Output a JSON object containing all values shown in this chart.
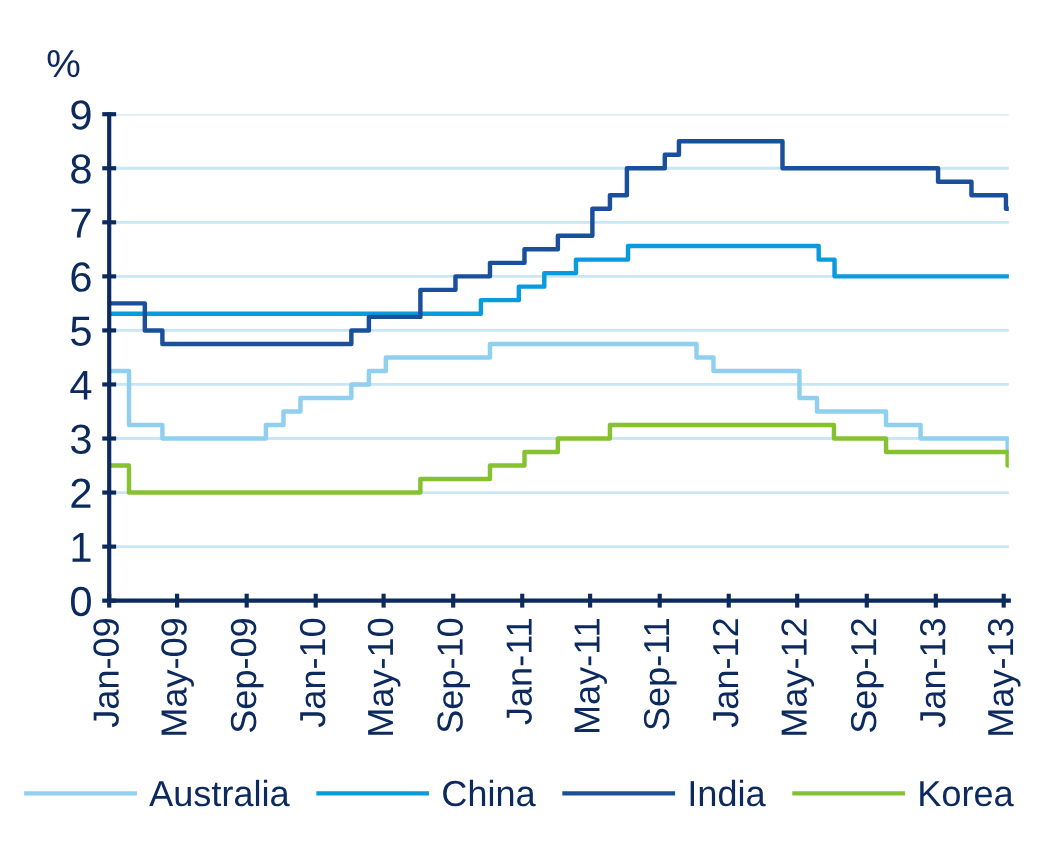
{
  "chart_data": {
    "type": "step",
    "ylabel": "%",
    "xlim": [
      "2009-01-01",
      "2013-05-10"
    ],
    "xticks": [
      {
        "value": "2009-01-01",
        "label": "Jan-09"
      },
      {
        "value": "2009-05-01",
        "label": "May-09"
      },
      {
        "value": "2009-09-01",
        "label": "Sep-09"
      },
      {
        "value": "2010-01-01",
        "label": "Jan-10"
      },
      {
        "value": "2010-05-01",
        "label": "May-10"
      },
      {
        "value": "2010-09-01",
        "label": "Sep-10"
      },
      {
        "value": "2011-01-01",
        "label": "Jan-11"
      },
      {
        "value": "2011-05-01",
        "label": "May-11"
      },
      {
        "value": "2011-09-01",
        "label": "Sep-11"
      },
      {
        "value": "2012-01-01",
        "label": "Jan-12"
      },
      {
        "value": "2012-05-01",
        "label": "May-12"
      },
      {
        "value": "2012-09-01",
        "label": "Sep-12"
      },
      {
        "value": "2013-01-01",
        "label": "Jan-13"
      },
      {
        "value": "2013-05-01",
        "label": "May-13"
      }
    ],
    "ylim": [
      0,
      9
    ],
    "yticks": [
      0,
      1,
      2,
      3,
      4,
      5,
      6,
      7,
      8,
      9
    ],
    "grid": "y",
    "legend": "bottom",
    "line_style": "solid",
    "marker": "none",
    "series": [
      {
        "name": "Australia",
        "color": "#8fd0f0",
        "x": [
          "2009-01-01",
          "2009-02-05",
          "2009-04-05",
          "2009-10-05",
          "2009-11-05",
          "2009-12-05",
          "2010-03-05",
          "2010-04-05",
          "2010-05-05",
          "2010-11-05",
          "2011-11-05",
          "2011-12-05",
          "2012-05-05",
          "2012-06-05",
          "2012-10-05",
          "2012-12-05",
          "2013-05-08",
          "2013-05-10"
        ],
        "values": [
          4.25,
          3.25,
          3.0,
          3.25,
          3.5,
          3.75,
          4.0,
          4.25,
          4.5,
          4.75,
          4.5,
          4.25,
          3.75,
          3.5,
          3.25,
          3.0,
          2.75,
          2.75
        ]
      },
      {
        "name": "China",
        "color": "#0a9ade",
        "x": [
          "2009-01-01",
          "2010-10-20",
          "2010-12-26",
          "2011-02-09",
          "2011-04-06",
          "2011-07-07",
          "2012-06-08",
          "2012-07-06",
          "2013-05-10"
        ],
        "values": [
          5.31,
          5.56,
          5.81,
          6.06,
          6.31,
          6.56,
          6.31,
          6.0,
          6.0
        ]
      },
      {
        "name": "India",
        "color": "#1a4f9c",
        "x": [
          "2009-01-01",
          "2009-03-05",
          "2009-04-05",
          "2010-03-05",
          "2010-04-05",
          "2010-07-05",
          "2010-09-05",
          "2010-11-05",
          "2011-01-05",
          "2011-03-05",
          "2011-05-05",
          "2011-06-05",
          "2011-07-05",
          "2011-09-10",
          "2011-10-05",
          "2012-04-05",
          "2013-01-05",
          "2013-03-05",
          "2013-05-05",
          "2013-05-10"
        ],
        "values": [
          5.5,
          5.0,
          4.75,
          5.0,
          5.25,
          5.75,
          6.0,
          6.25,
          6.5,
          6.75,
          7.25,
          7.5,
          8.0,
          8.25,
          8.5,
          8.0,
          7.75,
          7.5,
          7.25,
          7.25
        ]
      },
      {
        "name": "Korea",
        "color": "#86c230",
        "x": [
          "2009-01-01",
          "2009-02-05",
          "2010-07-05",
          "2010-11-05",
          "2011-01-05",
          "2011-03-05",
          "2011-06-05",
          "2012-07-05",
          "2012-10-05",
          "2013-05-08",
          "2013-05-10"
        ],
        "values": [
          2.5,
          2.0,
          2.25,
          2.5,
          2.75,
          3.0,
          3.25,
          3.0,
          2.75,
          2.5,
          2.5
        ]
      }
    ]
  }
}
